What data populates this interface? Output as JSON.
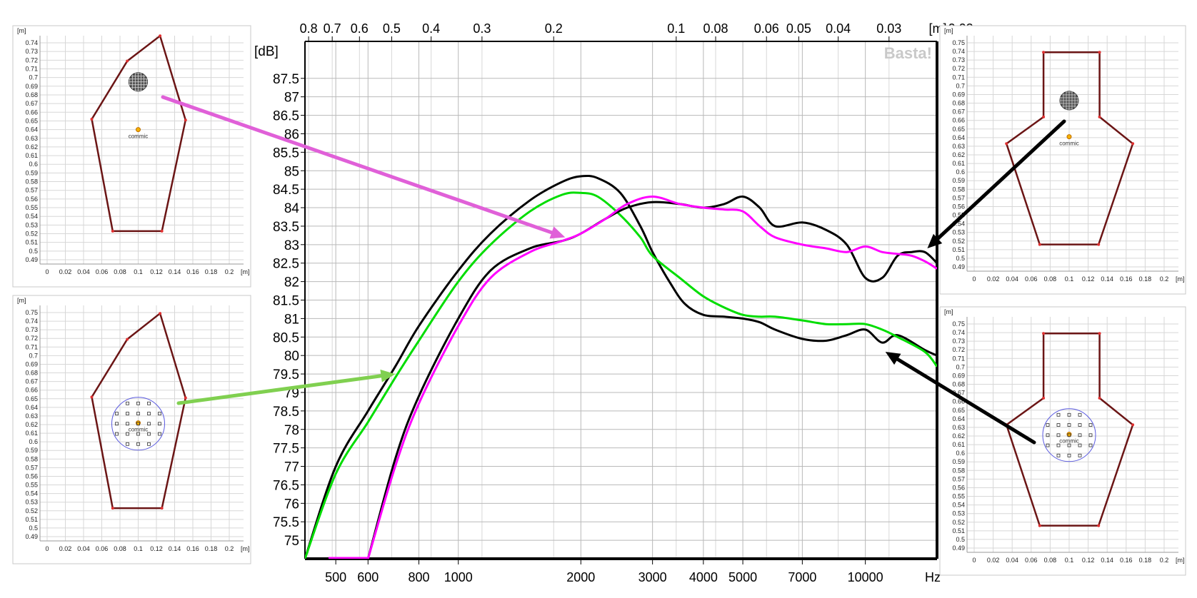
{
  "chart_data": {
    "type": "line",
    "x_scale": "log",
    "xlim": [
      420,
      15000
    ],
    "ylim": [
      74.5,
      88.5
    ],
    "ylabel": "[dB]",
    "xlabel": "Hz",
    "top_axis_label": "[m]",
    "watermark": "Basta!",
    "grid": true,
    "yticks": [
      "75",
      "75.5",
      "76",
      "76.5",
      "77",
      "77.5",
      "78",
      "78.5",
      "79",
      "79.5",
      "80",
      "80.5",
      "81",
      "81.5",
      "82",
      "82.5",
      "83",
      "83.5",
      "84",
      "84.5",
      "85",
      "85.5",
      "86",
      "86.5",
      "87",
      "87.5"
    ],
    "ytick_values": [
      75,
      75.5,
      76,
      76.5,
      77,
      77.5,
      78,
      78.5,
      79,
      79.5,
      80,
      80.5,
      81,
      81.5,
      82,
      82.5,
      83,
      83.5,
      84,
      84.5,
      85,
      85.5,
      86,
      86.5,
      87,
      87.5
    ],
    "xticks": [
      "500",
      "600",
      "800",
      "1000",
      "2000",
      "3000",
      "4000",
      "5000",
      "7000",
      "10000"
    ],
    "xtick_values": [
      500,
      600,
      800,
      1000,
      2000,
      3000,
      4000,
      5000,
      7000,
      10000
    ],
    "top_ticks": [
      "0.8",
      "0.7",
      "0.6",
      "0.5",
      "0.4",
      "0.3",
      "0.2",
      "0.1",
      "0.08",
      "0.06",
      "0.05",
      "0.04",
      "0.03",
      "0.02"
    ],
    "top_tick_values": [
      0.8,
      0.7,
      0.6,
      0.5,
      0.4,
      0.3,
      0.2,
      0.1,
      0.08,
      0.06,
      0.05,
      0.04,
      0.03,
      0.02
    ],
    "series": [
      {
        "color": "#000000",
        "x": [
          420,
          500,
          600,
          700,
          800,
          1000,
          1200,
          1500,
          1800,
          2000,
          2200,
          2500,
          2800,
          3000,
          3300,
          3600,
          4000,
          4500,
          5000,
          5500,
          6000,
          7000,
          8000,
          9000,
          10000,
          11000,
          12000,
          14000,
          15000
        ],
        "y": [
          74.5,
          77.0,
          78.5,
          79.7,
          80.8,
          82.3,
          83.3,
          84.2,
          84.7,
          84.85,
          84.8,
          84.4,
          83.5,
          82.8,
          82.0,
          81.4,
          81.1,
          81.05,
          81.0,
          80.9,
          80.7,
          80.45,
          80.4,
          80.55,
          80.7,
          80.35,
          80.55,
          80.15,
          80.0
        ]
      },
      {
        "color": "#00dd00",
        "x": [
          420,
          500,
          600,
          700,
          800,
          1000,
          1200,
          1500,
          1800,
          2000,
          2200,
          2500,
          2800,
          3000,
          3500,
          4000,
          4500,
          5000,
          5500,
          6000,
          7000,
          8000,
          9000,
          10000,
          11000,
          12000,
          14000,
          15000
        ],
        "y": [
          74.5,
          76.8,
          78.2,
          79.4,
          80.4,
          82.0,
          83.0,
          83.9,
          84.35,
          84.4,
          84.3,
          83.8,
          83.2,
          82.7,
          82.1,
          81.6,
          81.3,
          81.1,
          81.05,
          81.05,
          80.95,
          80.85,
          80.85,
          80.85,
          80.7,
          80.5,
          80.1,
          79.7
        ]
      },
      {
        "color": "#000000",
        "x": [
          600,
          700,
          800,
          1000,
          1200,
          1500,
          1800,
          2000,
          2300,
          2600,
          3000,
          3500,
          4000,
          4500,
          5000,
          5500,
          6000,
          7000,
          8000,
          9000,
          10000,
          11000,
          12000,
          13000,
          14000,
          15000
        ],
        "y": [
          74.5,
          77.2,
          78.9,
          81.0,
          82.3,
          82.9,
          83.1,
          83.3,
          83.7,
          84.0,
          84.15,
          84.1,
          84.0,
          84.1,
          84.3,
          84.0,
          83.5,
          83.6,
          83.4,
          83.0,
          82.1,
          82.1,
          82.7,
          82.8,
          82.8,
          82.5
        ]
      },
      {
        "color": "#ff00ff",
        "x": [
          600,
          700,
          800,
          1000,
          1200,
          1500,
          1800,
          2000,
          2300,
          2600,
          3000,
          3500,
          4000,
          4500,
          5000,
          5500,
          6000,
          7000,
          8000,
          9000,
          10000,
          11000,
          12000,
          13000,
          14000,
          15000
        ],
        "y": [
          74.5,
          77.0,
          78.7,
          80.8,
          82.1,
          82.8,
          83.1,
          83.3,
          83.7,
          84.1,
          84.3,
          84.1,
          84.0,
          83.95,
          83.9,
          83.5,
          83.2,
          83.0,
          82.9,
          82.8,
          82.95,
          82.8,
          82.75,
          82.7,
          82.55,
          82.35
        ]
      }
    ],
    "annotations": [
      {
        "name": "magenta-arrow",
        "color": "#e060d8",
        "target_x": 1830,
        "target_y": 83.2
      },
      {
        "name": "green-arrow",
        "color": "#80d050",
        "target_x": 700,
        "target_y": 79.5
      },
      {
        "name": "black-arrow-upper",
        "color": "#000000",
        "target_x": 14200,
        "target_y": 82.9
      },
      {
        "name": "black-arrow-lower",
        "color": "#000000",
        "target_x": 11200,
        "target_y": 80.1
      }
    ]
  },
  "insets": [
    {
      "name": "inset-top-left",
      "unit_label": "[m]",
      "y_ticks": [
        "0.74",
        "0.73",
        "0.72",
        "0.71",
        "0.7",
        "0.69",
        "0.68",
        "0.67",
        "0.66",
        "0.65",
        "0.64",
        "0.63",
        "0.62",
        "0.61",
        "0.6",
        "0.59",
        "0.58",
        "0.57",
        "0.56",
        "0.55",
        "0.54",
        "0.53",
        "0.52",
        "0.51",
        "0.5",
        "0.49"
      ],
      "x_ticks": [
        "0",
        "0.02",
        "0.04",
        "0.06",
        "0.08",
        "0.1",
        "0.12",
        "0.14",
        "0.16",
        "0.18",
        "0.2"
      ],
      "x_unit": "[m]",
      "mic_label": "commic",
      "shape": "pentagon",
      "driver": "grid-cluster"
    },
    {
      "name": "inset-bottom-left",
      "unit_label": "[m]",
      "y_ticks": [
        "0.75",
        "0.74",
        "0.73",
        "0.72",
        "0.71",
        "0.7",
        "0.69",
        "0.68",
        "0.67",
        "0.66",
        "0.65",
        "0.64",
        "0.63",
        "0.62",
        "0.61",
        "0.6",
        "0.59",
        "0.58",
        "0.57",
        "0.56",
        "0.55",
        "0.54",
        "0.53",
        "0.52",
        "0.51",
        "0.5",
        "0.49"
      ],
      "x_ticks": [
        "0",
        "0.02",
        "0.04",
        "0.06",
        "0.08",
        "0.1",
        "0.12",
        "0.14",
        "0.16",
        "0.18",
        "0.2"
      ],
      "x_unit": "[m]",
      "mic_label": "commic",
      "shape": "pentagon",
      "driver": "circle-array"
    },
    {
      "name": "inset-top-right",
      "unit_label": "[m]",
      "y_ticks": [
        "0.75",
        "0.74",
        "0.73",
        "0.72",
        "0.71",
        "0.7",
        "0.69",
        "0.68",
        "0.67",
        "0.66",
        "0.65",
        "0.64",
        "0.63",
        "0.62",
        "0.61",
        "0.6",
        "0.59",
        "0.58",
        "0.57",
        "0.56",
        "0.55",
        "0.54",
        "0.53",
        "0.52",
        "0.51",
        "0.5",
        "0.49"
      ],
      "x_ticks": [
        "0",
        "0.02",
        "0.04",
        "0.06",
        "0.08",
        "0.1",
        "0.12",
        "0.14",
        "0.16",
        "0.18",
        "0.2"
      ],
      "x_unit": "[m]",
      "mic_label": "commic",
      "shape": "necked",
      "driver": "grid-cluster"
    },
    {
      "name": "inset-bottom-right",
      "unit_label": "[m]",
      "y_ticks": [
        "0.75",
        "0.74",
        "0.73",
        "0.72",
        "0.71",
        "0.7",
        "0.69",
        "0.68",
        "0.67",
        "0.66",
        "0.65",
        "0.64",
        "0.63",
        "0.62",
        "0.61",
        "0.6",
        "0.59",
        "0.58",
        "0.57",
        "0.56",
        "0.55",
        "0.54",
        "0.53",
        "0.52",
        "0.51",
        "0.5",
        "0.49"
      ],
      "x_ticks": [
        "0",
        "0.02",
        "0.04",
        "0.06",
        "0.08",
        "0.1",
        "0.12",
        "0.14",
        "0.16",
        "0.18",
        "0.2"
      ],
      "x_unit": "[m]",
      "mic_label": "commic",
      "shape": "necked",
      "driver": "circle-array"
    }
  ]
}
